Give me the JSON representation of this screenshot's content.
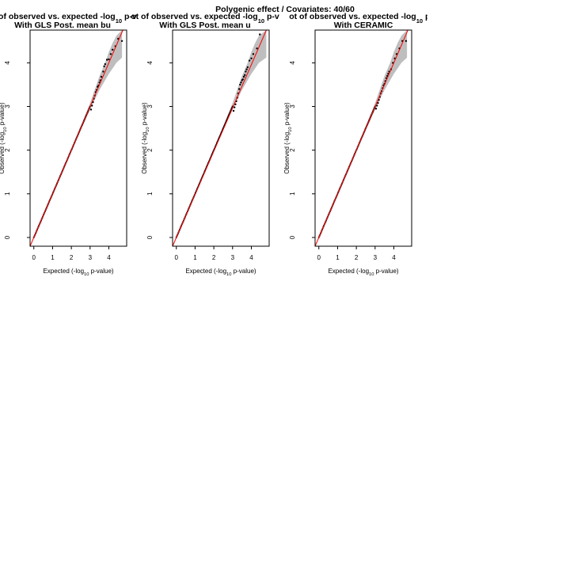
{
  "figure_title": "Polygenic effect / Covariates: 40/60",
  "colors": {
    "band": "#bebebe",
    "line": "#ff0000",
    "points": "#000000",
    "axis": "#000000"
  },
  "chart_data": [
    {
      "type": "scatter",
      "title_line1": {
        "pre": "ot of observed vs. expected -log",
        "sub": "10",
        "post": " p-v"
      },
      "title_line2": "With GLS Post. mean bu",
      "xlabel": {
        "pre": "Expected (-log",
        "sub": "10",
        "post": " p-value)"
      },
      "ylabel": {
        "pre": "Observed (-log",
        "sub": "10",
        "post": " p-value)"
      },
      "xlim": [
        -0.2,
        4.95
      ],
      "ylim": [
        -0.2,
        4.75
      ],
      "xticks": [
        "0",
        "1",
        "2",
        "3",
        "4"
      ],
      "yticks": [
        "0",
        "1",
        "2",
        "3",
        "4"
      ],
      "band": {
        "x": [
          0,
          1,
          2,
          3,
          3.5,
          3.8,
          4.0,
          4.2,
          4.4,
          4.7
        ],
        "lower": [
          0,
          0.99,
          1.99,
          2.93,
          3.38,
          3.6,
          3.75,
          3.87,
          4.0,
          4.12
        ],
        "upper": [
          0,
          1.01,
          2.01,
          3.08,
          3.7,
          4.0,
          4.25,
          4.45,
          4.62,
          4.75
        ]
      },
      "reference_line": {
        "from": [
          -0.2,
          -0.2
        ],
        "to": [
          4.75,
          4.75
        ]
      },
      "tail_points": [
        [
          3.05,
          2.93
        ],
        [
          3.1,
          3.02
        ],
        [
          3.15,
          3.1
        ],
        [
          3.2,
          3.18
        ],
        [
          3.25,
          3.25
        ],
        [
          3.3,
          3.33
        ],
        [
          3.35,
          3.38
        ],
        [
          3.4,
          3.45
        ],
        [
          3.45,
          3.48
        ],
        [
          3.5,
          3.55
        ],
        [
          3.55,
          3.6
        ],
        [
          3.6,
          3.68
        ],
        [
          3.7,
          3.8
        ],
        [
          3.75,
          3.92
        ],
        [
          3.8,
          3.97
        ],
        [
          3.9,
          4.07
        ],
        [
          4.0,
          4.08
        ],
        [
          4.1,
          4.2
        ],
        [
          4.2,
          4.3
        ],
        [
          4.35,
          4.38
        ],
        [
          4.5,
          4.55
        ],
        [
          4.7,
          4.5
        ]
      ],
      "bulk_range": [
        0,
        3.0
      ]
    },
    {
      "type": "scatter",
      "title_line1": {
        "pre": "ot of observed vs. expected -log",
        "sub": "10",
        "post": " p-v"
      },
      "title_line2": "With GLS Post. mean u",
      "xlabel": {
        "pre": "Expected (-log",
        "sub": "10",
        "post": " p-value)"
      },
      "ylabel": {
        "pre": "Observed (-log",
        "sub": "10",
        "post": " p-value)"
      },
      "xlim": [
        -0.2,
        4.95
      ],
      "ylim": [
        -0.2,
        4.75
      ],
      "xticks": [
        "0",
        "1",
        "2",
        "3",
        "4"
      ],
      "yticks": [
        "0",
        "1",
        "2",
        "3",
        "4"
      ],
      "band": {
        "x": [
          0,
          1,
          2,
          3,
          3.5,
          3.8,
          4.0,
          4.2,
          4.4,
          4.8
        ],
        "lower": [
          0,
          0.99,
          1.99,
          2.93,
          3.38,
          3.6,
          3.75,
          3.87,
          4.0,
          4.12
        ],
        "upper": [
          0,
          1.01,
          2.01,
          3.08,
          3.7,
          4.0,
          4.25,
          4.45,
          4.62,
          4.75
        ]
      },
      "reference_line": {
        "from": [
          -0.2,
          -0.2
        ],
        "to": [
          4.8,
          4.75
        ]
      },
      "tail_points": [
        [
          3.05,
          2.9
        ],
        [
          3.1,
          2.98
        ],
        [
          3.15,
          3.05
        ],
        [
          3.2,
          3.12
        ],
        [
          3.25,
          3.2
        ],
        [
          3.3,
          3.3
        ],
        [
          3.35,
          3.4
        ],
        [
          3.4,
          3.5
        ],
        [
          3.45,
          3.55
        ],
        [
          3.5,
          3.6
        ],
        [
          3.55,
          3.62
        ],
        [
          3.6,
          3.68
        ],
        [
          3.65,
          3.72
        ],
        [
          3.7,
          3.8
        ],
        [
          3.75,
          3.85
        ],
        [
          3.8,
          3.9
        ],
        [
          3.9,
          4.05
        ],
        [
          4.0,
          4.1
        ],
        [
          4.1,
          4.2
        ],
        [
          4.3,
          4.33
        ],
        [
          4.45,
          4.65
        ]
      ],
      "bulk_range": [
        0,
        3.0
      ]
    },
    {
      "type": "scatter",
      "title_line1": {
        "pre": "ot of observed vs. expected -log",
        "sub": "10",
        "post": " p-v"
      },
      "title_line2": "With CERAMIC",
      "xlabel": {
        "pre": "Expected (-log",
        "sub": "10",
        "post": " p-value)"
      },
      "ylabel": {
        "pre": "Observed (-log",
        "sub": "10",
        "post": " p-value)"
      },
      "xlim": [
        -0.2,
        4.95
      ],
      "ylim": [
        -0.2,
        4.75
      ],
      "xticks": [
        "0",
        "1",
        "2",
        "3",
        "4"
      ],
      "yticks": [
        "0",
        "1",
        "2",
        "3",
        "4"
      ],
      "band": {
        "x": [
          0,
          1,
          2,
          3,
          3.5,
          3.8,
          4.0,
          4.2,
          4.4,
          4.7
        ],
        "lower": [
          0,
          0.99,
          1.99,
          2.93,
          3.38,
          3.6,
          3.75,
          3.87,
          4.0,
          4.12
        ],
        "upper": [
          0,
          1.01,
          2.01,
          3.08,
          3.7,
          4.0,
          4.25,
          4.45,
          4.62,
          4.75
        ]
      },
      "reference_line": {
        "from": [
          -0.2,
          -0.2
        ],
        "to": [
          4.75,
          4.75
        ]
      },
      "tail_points": [
        [
          3.05,
          2.95
        ],
        [
          3.1,
          3.02
        ],
        [
          3.15,
          3.08
        ],
        [
          3.2,
          3.15
        ],
        [
          3.25,
          3.22
        ],
        [
          3.3,
          3.3
        ],
        [
          3.35,
          3.35
        ],
        [
          3.4,
          3.42
        ],
        [
          3.45,
          3.48
        ],
        [
          3.5,
          3.52
        ],
        [
          3.55,
          3.58
        ],
        [
          3.6,
          3.65
        ],
        [
          3.65,
          3.7
        ],
        [
          3.7,
          3.75
        ],
        [
          3.75,
          3.8
        ],
        [
          3.85,
          3.85
        ],
        [
          3.95,
          4.0
        ],
        [
          4.05,
          4.1
        ],
        [
          4.15,
          4.2
        ],
        [
          4.3,
          4.33
        ],
        [
          4.45,
          4.5
        ],
        [
          4.65,
          4.5
        ]
      ],
      "bulk_range": [
        0,
        3.0
      ]
    }
  ]
}
